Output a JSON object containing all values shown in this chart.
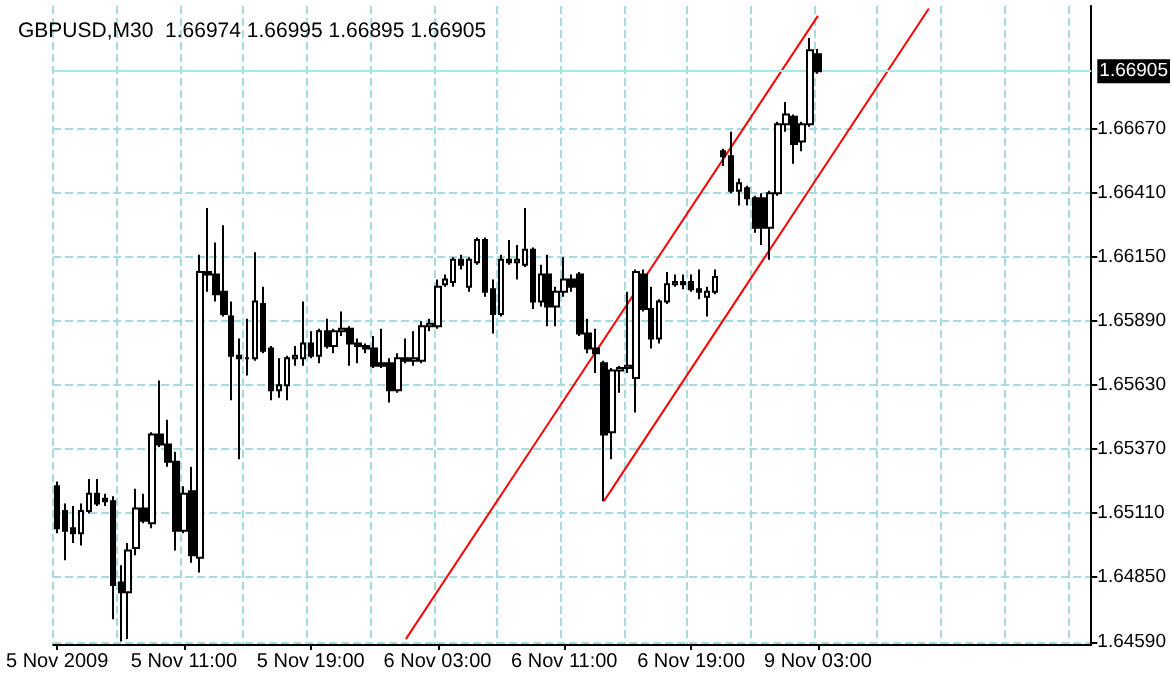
{
  "chart_data": {
    "type": "candlestick",
    "title": "GBPUSD,M30  1.66974 1.66995 1.66895 1.66905",
    "categories": [
      "5 Nov 2009",
      null,
      null,
      null,
      null,
      null,
      null,
      null,
      null,
      null,
      null,
      null,
      null,
      null,
      null,
      null,
      "5 Nov 11:00",
      null,
      null,
      null,
      null,
      null,
      null,
      null,
      null,
      null,
      null,
      null,
      null,
      null,
      null,
      null,
      "5 Nov 19:00",
      null,
      null,
      null,
      null,
      null,
      null,
      null,
      null,
      null,
      null,
      null,
      null,
      null,
      null,
      null,
      "6 Nov 03:00",
      null,
      null,
      null,
      null,
      null,
      null,
      null,
      null,
      null,
      null,
      null,
      null,
      null,
      null,
      null,
      "6 Nov 11:00",
      null,
      null,
      null,
      null,
      null,
      null,
      null,
      null,
      null,
      null,
      null,
      null,
      null,
      null,
      null,
      "6 Nov 19:00",
      null,
      null,
      null,
      null,
      null,
      null,
      null,
      null,
      null,
      null,
      null,
      null,
      null,
      null,
      null,
      "9 Nov 03:00",
      null,
      null,
      null,
      null,
      null,
      null,
      null,
      null,
      null,
      null,
      null,
      null,
      null,
      null,
      null,
      null,
      null,
      null,
      null,
      null,
      null,
      null,
      null,
      null,
      null,
      null,
      null,
      null,
      null,
      null,
      null,
      null,
      null,
      null
    ],
    "ohlc": [
      [
        1.6522,
        1.6524,
        1.6503,
        1.6505
      ],
      [
        1.6512,
        1.6515,
        1.6492,
        1.6504
      ],
      [
        1.6505,
        1.6514,
        1.6499,
        1.6503
      ],
      [
        1.6503,
        1.6515,
        1.6498,
        1.6512
      ],
      [
        1.6512,
        1.6525,
        1.6511,
        1.6519
      ],
      [
        1.6519,
        1.6525,
        1.6514,
        1.6515
      ],
      [
        1.6517,
        1.6519,
        1.6514,
        1.6516
      ],
      [
        1.6516,
        1.6518,
        1.6468,
        1.6482
      ],
      [
        1.6483,
        1.649,
        1.6459,
        1.6479
      ],
      [
        1.6479,
        1.6499,
        1.646,
        1.6496
      ],
      [
        1.6497,
        1.6521,
        1.6494,
        1.6513
      ],
      [
        1.6513,
        1.6519,
        1.6507,
        1.6508
      ],
      [
        1.6507,
        1.6544,
        1.6505,
        1.6543
      ],
      [
        1.6543,
        1.6565,
        1.6538,
        1.6539
      ],
      [
        1.6539,
        1.6549,
        1.653,
        1.6532
      ],
      [
        1.6532,
        1.6536,
        1.6496,
        1.6504
      ],
      [
        1.6504,
        1.6522,
        1.6503,
        1.6519
      ],
      [
        1.652,
        1.653,
        1.6491,
        1.6494
      ],
      [
        1.6493,
        1.6616,
        1.6487,
        1.6609
      ],
      [
        1.6609,
        1.6635,
        1.6601,
        1.6608
      ],
      [
        1.6608,
        1.6621,
        1.6597,
        1.66
      ],
      [
        1.6601,
        1.6628,
        1.6591,
        1.6592
      ],
      [
        1.6591,
        1.6597,
        1.6557,
        1.6575
      ],
      [
        1.6575,
        1.6582,
        1.6533,
        1.6574
      ],
      [
        1.6574,
        1.659,
        1.6567,
        1.6574
      ],
      [
        1.6574,
        1.6617,
        1.6573,
        1.6597
      ],
      [
        1.6596,
        1.6603,
        1.6576,
        1.6577
      ],
      [
        1.6578,
        1.6579,
        1.6557,
        1.6561
      ],
      [
        1.6561,
        1.6574,
        1.6558,
        1.6563
      ],
      [
        1.6563,
        1.6575,
        1.6557,
        1.6574
      ],
      [
        1.6574,
        1.6579,
        1.6571,
        1.6575
      ],
      [
        1.6574,
        1.6597,
        1.6571,
        1.658
      ],
      [
        1.658,
        1.6585,
        1.6574,
        1.6575
      ],
      [
        1.6575,
        1.6586,
        1.6572,
        1.6585
      ],
      [
        1.6585,
        1.659,
        1.6578,
        1.6579
      ],
      [
        1.6579,
        1.6586,
        1.6576,
        1.6585
      ],
      [
        1.6585,
        1.6593,
        1.6583,
        1.6586
      ],
      [
        1.6586,
        1.6587,
        1.6571,
        1.658
      ],
      [
        1.658,
        1.6582,
        1.6572,
        1.6579
      ],
      [
        1.6579,
        1.658,
        1.6576,
        1.6578
      ],
      [
        1.6578,
        1.6583,
        1.657,
        1.6571
      ],
      [
        1.6572,
        1.6586,
        1.657,
        1.6571
      ],
      [
        1.6572,
        1.6574,
        1.6556,
        1.6561
      ],
      [
        1.6561,
        1.6576,
        1.656,
        1.6574
      ],
      [
        1.6574,
        1.6582,
        1.6572,
        1.6573
      ],
      [
        1.6573,
        1.6585,
        1.6571,
        1.6574
      ],
      [
        1.6573,
        1.6589,
        1.6572,
        1.6587
      ],
      [
        1.6587,
        1.659,
        1.6585,
        1.6588
      ],
      [
        1.6587,
        1.6606,
        1.6586,
        1.6603
      ],
      [
        1.6604,
        1.6608,
        1.6603,
        1.6606
      ],
      [
        1.6605,
        1.6615,
        1.6603,
        1.6614
      ],
      [
        1.6614,
        1.6616,
        1.661,
        1.6612
      ],
      [
        1.6603,
        1.6615,
        1.6601,
        1.6614
      ],
      [
        1.6613,
        1.6623,
        1.6612,
        1.6622
      ],
      [
        1.6622,
        1.6623,
        1.6599,
        1.6601
      ],
      [
        1.6602,
        1.6606,
        1.6584,
        1.6592
      ],
      [
        1.6592,
        1.6616,
        1.6591,
        1.6614
      ],
      [
        1.6614,
        1.6622,
        1.6612,
        1.6613
      ],
      [
        1.6613,
        1.662,
        1.6606,
        1.6614
      ],
      [
        1.6612,
        1.6635,
        1.6611,
        1.6618
      ],
      [
        1.6618,
        1.6619,
        1.6594,
        1.6597
      ],
      [
        1.6597,
        1.6612,
        1.6595,
        1.6608
      ],
      [
        1.6608,
        1.6616,
        1.6587,
        1.6595
      ],
      [
        1.6595,
        1.6603,
        1.6587,
        1.6601
      ],
      [
        1.6601,
        1.6615,
        1.6599,
        1.6606
      ],
      [
        1.6606,
        1.6608,
        1.6601,
        1.6603
      ],
      [
        1.6608,
        1.6609,
        1.6583,
        1.6584
      ],
      [
        1.6584,
        1.659,
        1.6576,
        1.6578
      ],
      [
        1.6578,
        1.6586,
        1.6568,
        1.6576
      ],
      [
        1.6572,
        1.6573,
        1.6516,
        1.6543
      ],
      [
        1.6544,
        1.657,
        1.6533,
        1.6569
      ],
      [
        1.6569,
        1.6571,
        1.656,
        1.657
      ],
      [
        1.657,
        1.6601,
        1.6568,
        1.6571
      ],
      [
        1.6566,
        1.661,
        1.6552,
        1.6609
      ],
      [
        1.6608,
        1.661,
        1.6593,
        1.6594
      ],
      [
        1.6594,
        1.6603,
        1.6578,
        1.6582
      ],
      [
        1.6582,
        1.6598,
        1.658,
        1.6597
      ],
      [
        1.6597,
        1.6609,
        1.6596,
        1.6604
      ],
      [
        1.6604,
        1.6608,
        1.6603,
        1.6605
      ],
      [
        1.6605,
        1.6608,
        1.6602,
        1.6604
      ],
      [
        1.6605,
        1.6608,
        1.6601,
        1.6602
      ],
      [
        1.6602,
        1.661,
        1.6598,
        1.6601
      ],
      [
        1.6599,
        1.6603,
        1.6591,
        1.6601
      ],
      [
        1.6601,
        1.661,
        1.66,
        1.6607
      ],
      [
        1.6658,
        1.6659,
        1.6652,
        1.6656
      ],
      [
        1.6656,
        1.6666,
        1.6641,
        1.6642
      ],
      [
        1.6642,
        1.6647,
        1.6636,
        1.6645
      ],
      [
        1.6643,
        1.6644,
        1.6636,
        1.6639
      ],
      [
        1.6639,
        1.664,
        1.6625,
        1.6627
      ],
      [
        1.6639,
        1.6641,
        1.662,
        1.6627
      ],
      [
        1.6627,
        1.6642,
        1.6614,
        1.6641
      ],
      [
        1.6641,
        1.667,
        1.664,
        1.6669
      ],
      [
        1.6669,
        1.6678,
        1.6666,
        1.6673
      ],
      [
        1.6672,
        1.6673,
        1.6653,
        1.6661
      ],
      [
        1.6662,
        1.667,
        1.6658,
        1.6669
      ],
      [
        1.6669,
        1.6704,
        1.6668,
        1.6699
      ],
      [
        1.66974,
        1.66995,
        1.66895,
        1.66905
      ],
      null,
      null,
      null,
      null,
      null,
      null,
      null,
      null,
      null,
      null,
      null,
      null,
      null,
      null,
      null,
      null,
      null,
      null,
      null,
      null,
      null,
      null,
      null,
      null,
      null,
      null,
      null,
      null,
      null,
      null,
      null,
      null,
      null,
      null
    ],
    "series": [
      {
        "type": "line",
        "color": "#ff0000",
        "values": [
          null,
          null,
          null,
          null,
          null,
          null,
          null,
          null,
          null,
          null,
          null,
          null,
          null,
          null,
          null,
          null,
          null,
          null,
          null,
          null,
          null,
          null,
          null,
          null,
          null,
          null,
          null,
          null,
          null,
          null,
          null,
          null,
          null,
          null,
          null,
          null,
          null,
          null,
          null,
          null,
          null,
          null,
          null,
          null,
          1.646,
          null,
          null,
          null,
          null,
          null,
          null,
          null,
          null,
          null,
          null,
          null,
          null,
          null,
          null,
          null,
          null,
          null,
          null,
          null,
          null,
          null,
          null,
          null,
          null,
          null,
          null,
          null,
          null,
          null,
          null,
          null,
          null,
          null,
          null,
          null,
          null,
          null,
          null,
          null,
          null,
          null,
          null,
          null,
          null,
          null,
          null,
          null,
          null,
          null,
          null,
          null,
          1.6713,
          null,
          null,
          null,
          null,
          null,
          null,
          null,
          null,
          null,
          null,
          null,
          null,
          null,
          null,
          null,
          null,
          null,
          null,
          null,
          null,
          null,
          null,
          null,
          null,
          null,
          null,
          null,
          null,
          null,
          null,
          null,
          null,
          null,
          null
        ]
      },
      {
        "type": "line",
        "color": "#ff0000",
        "values": [
          null,
          null,
          null,
          null,
          null,
          null,
          null,
          null,
          null,
          null,
          null,
          null,
          null,
          null,
          null,
          null,
          null,
          null,
          null,
          null,
          null,
          null,
          null,
          null,
          null,
          null,
          null,
          null,
          null,
          null,
          null,
          null,
          null,
          null,
          null,
          null,
          null,
          null,
          null,
          null,
          null,
          null,
          null,
          null,
          null,
          null,
          null,
          null,
          null,
          null,
          null,
          null,
          null,
          null,
          null,
          null,
          null,
          null,
          null,
          null,
          null,
          null,
          null,
          null,
          null,
          null,
          null,
          null,
          null,
          1.6516,
          null,
          null,
          null,
          null,
          null,
          null,
          null,
          null,
          null,
          null,
          null,
          null,
          null,
          null,
          null,
          null,
          null,
          null,
          null,
          null,
          null,
          null,
          null,
          null,
          null,
          null,
          null,
          null,
          null,
          null,
          null,
          null,
          null,
          null,
          null,
          null,
          null,
          null,
          null,
          null,
          1.6716,
          null,
          null,
          null,
          null,
          null,
          null,
          null,
          null,
          null,
          null,
          null,
          null,
          null,
          null,
          null,
          null,
          null,
          null,
          null,
          null
        ]
      }
    ],
    "ylim": [
      1.6458,
      1.6717
    ],
    "yticks": [
      {
        "value": 1.6459,
        "label": "1.64590"
      },
      {
        "value": 1.6485,
        "label": "1.64850"
      },
      {
        "value": 1.6511,
        "label": "1.65110"
      },
      {
        "value": 1.6537,
        "label": "1.65370"
      },
      {
        "value": 1.6563,
        "label": "1.65630"
      },
      {
        "value": 1.6589,
        "label": "1.65890"
      },
      {
        "value": 1.6615,
        "label": "1.66150"
      },
      {
        "value": 1.6641,
        "label": "1.66410"
      },
      {
        "value": 1.6667,
        "label": "1.66670"
      }
    ],
    "ref_lines": [
      {
        "axis": "y",
        "value": 1.66905,
        "label": "1.66905",
        "color": "#a8e6ec"
      }
    ],
    "grid": true
  }
}
